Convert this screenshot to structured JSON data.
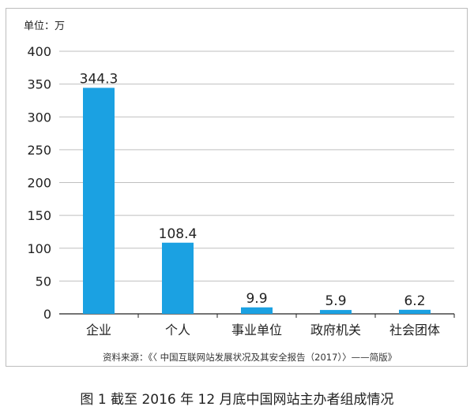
{
  "unit_label": "单位：万",
  "source_note": "资料来源：《〈 中国互联网站发展状况及其安全报告（2017）〉——简版》",
  "figure_caption": "图 1  截至 2016 年 12 月底中国网站主办者组成情况",
  "colors": {
    "bar": "#1ba1e2",
    "grid": "#bfbfbf",
    "axis": "#222222"
  },
  "chart_data": {
    "type": "bar",
    "categories": [
      "企业",
      "个人",
      "事业单位",
      "政府机关",
      "社会团体"
    ],
    "values": [
      344.3,
      108.4,
      9.9,
      5.9,
      6.2
    ],
    "value_labels": [
      "344.3",
      "108.4",
      "9.9",
      "5.9",
      "6.2"
    ],
    "yticks": [
      0,
      50,
      100,
      150,
      200,
      250,
      300,
      350,
      400
    ],
    "ylim": [
      0,
      400
    ],
    "grid": true,
    "legend": "none",
    "ylabel": "单位：万"
  }
}
